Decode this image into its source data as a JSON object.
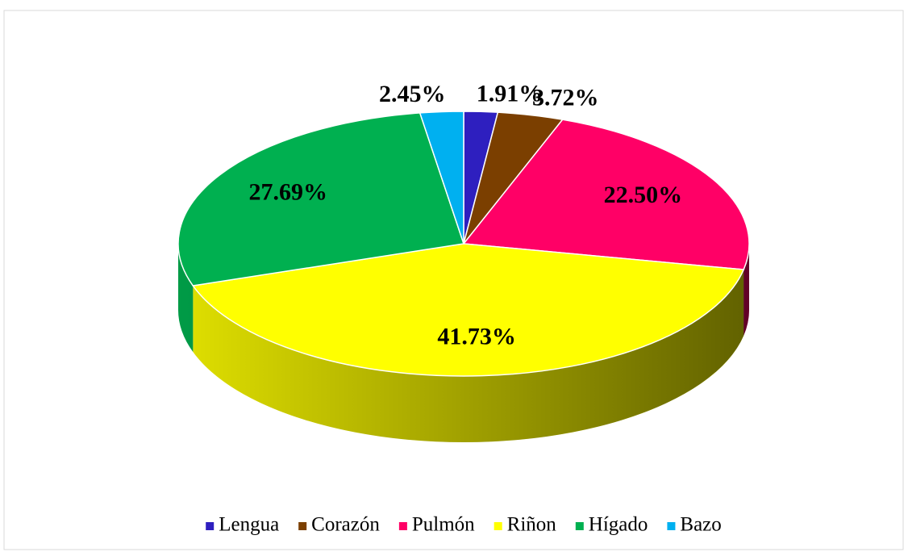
{
  "chart_data": {
    "type": "pie3d",
    "categories": [
      "Lengua",
      "Corazón",
      "Pulmón",
      "Riñon",
      "Hígado",
      "Bazo"
    ],
    "values": [
      1.91,
      3.72,
      22.5,
      41.73,
      27.69,
      2.45
    ],
    "value_labels": [
      "1.91%",
      "3.72%",
      "22.50%",
      "41.73%",
      "27.69%",
      "2.45%"
    ],
    "colors": [
      "#2e1fbf",
      "#7b3f00",
      "#ff0066",
      "#ffff00",
      "#00b050",
      "#00b0f0"
    ],
    "legend": "bottom"
  }
}
